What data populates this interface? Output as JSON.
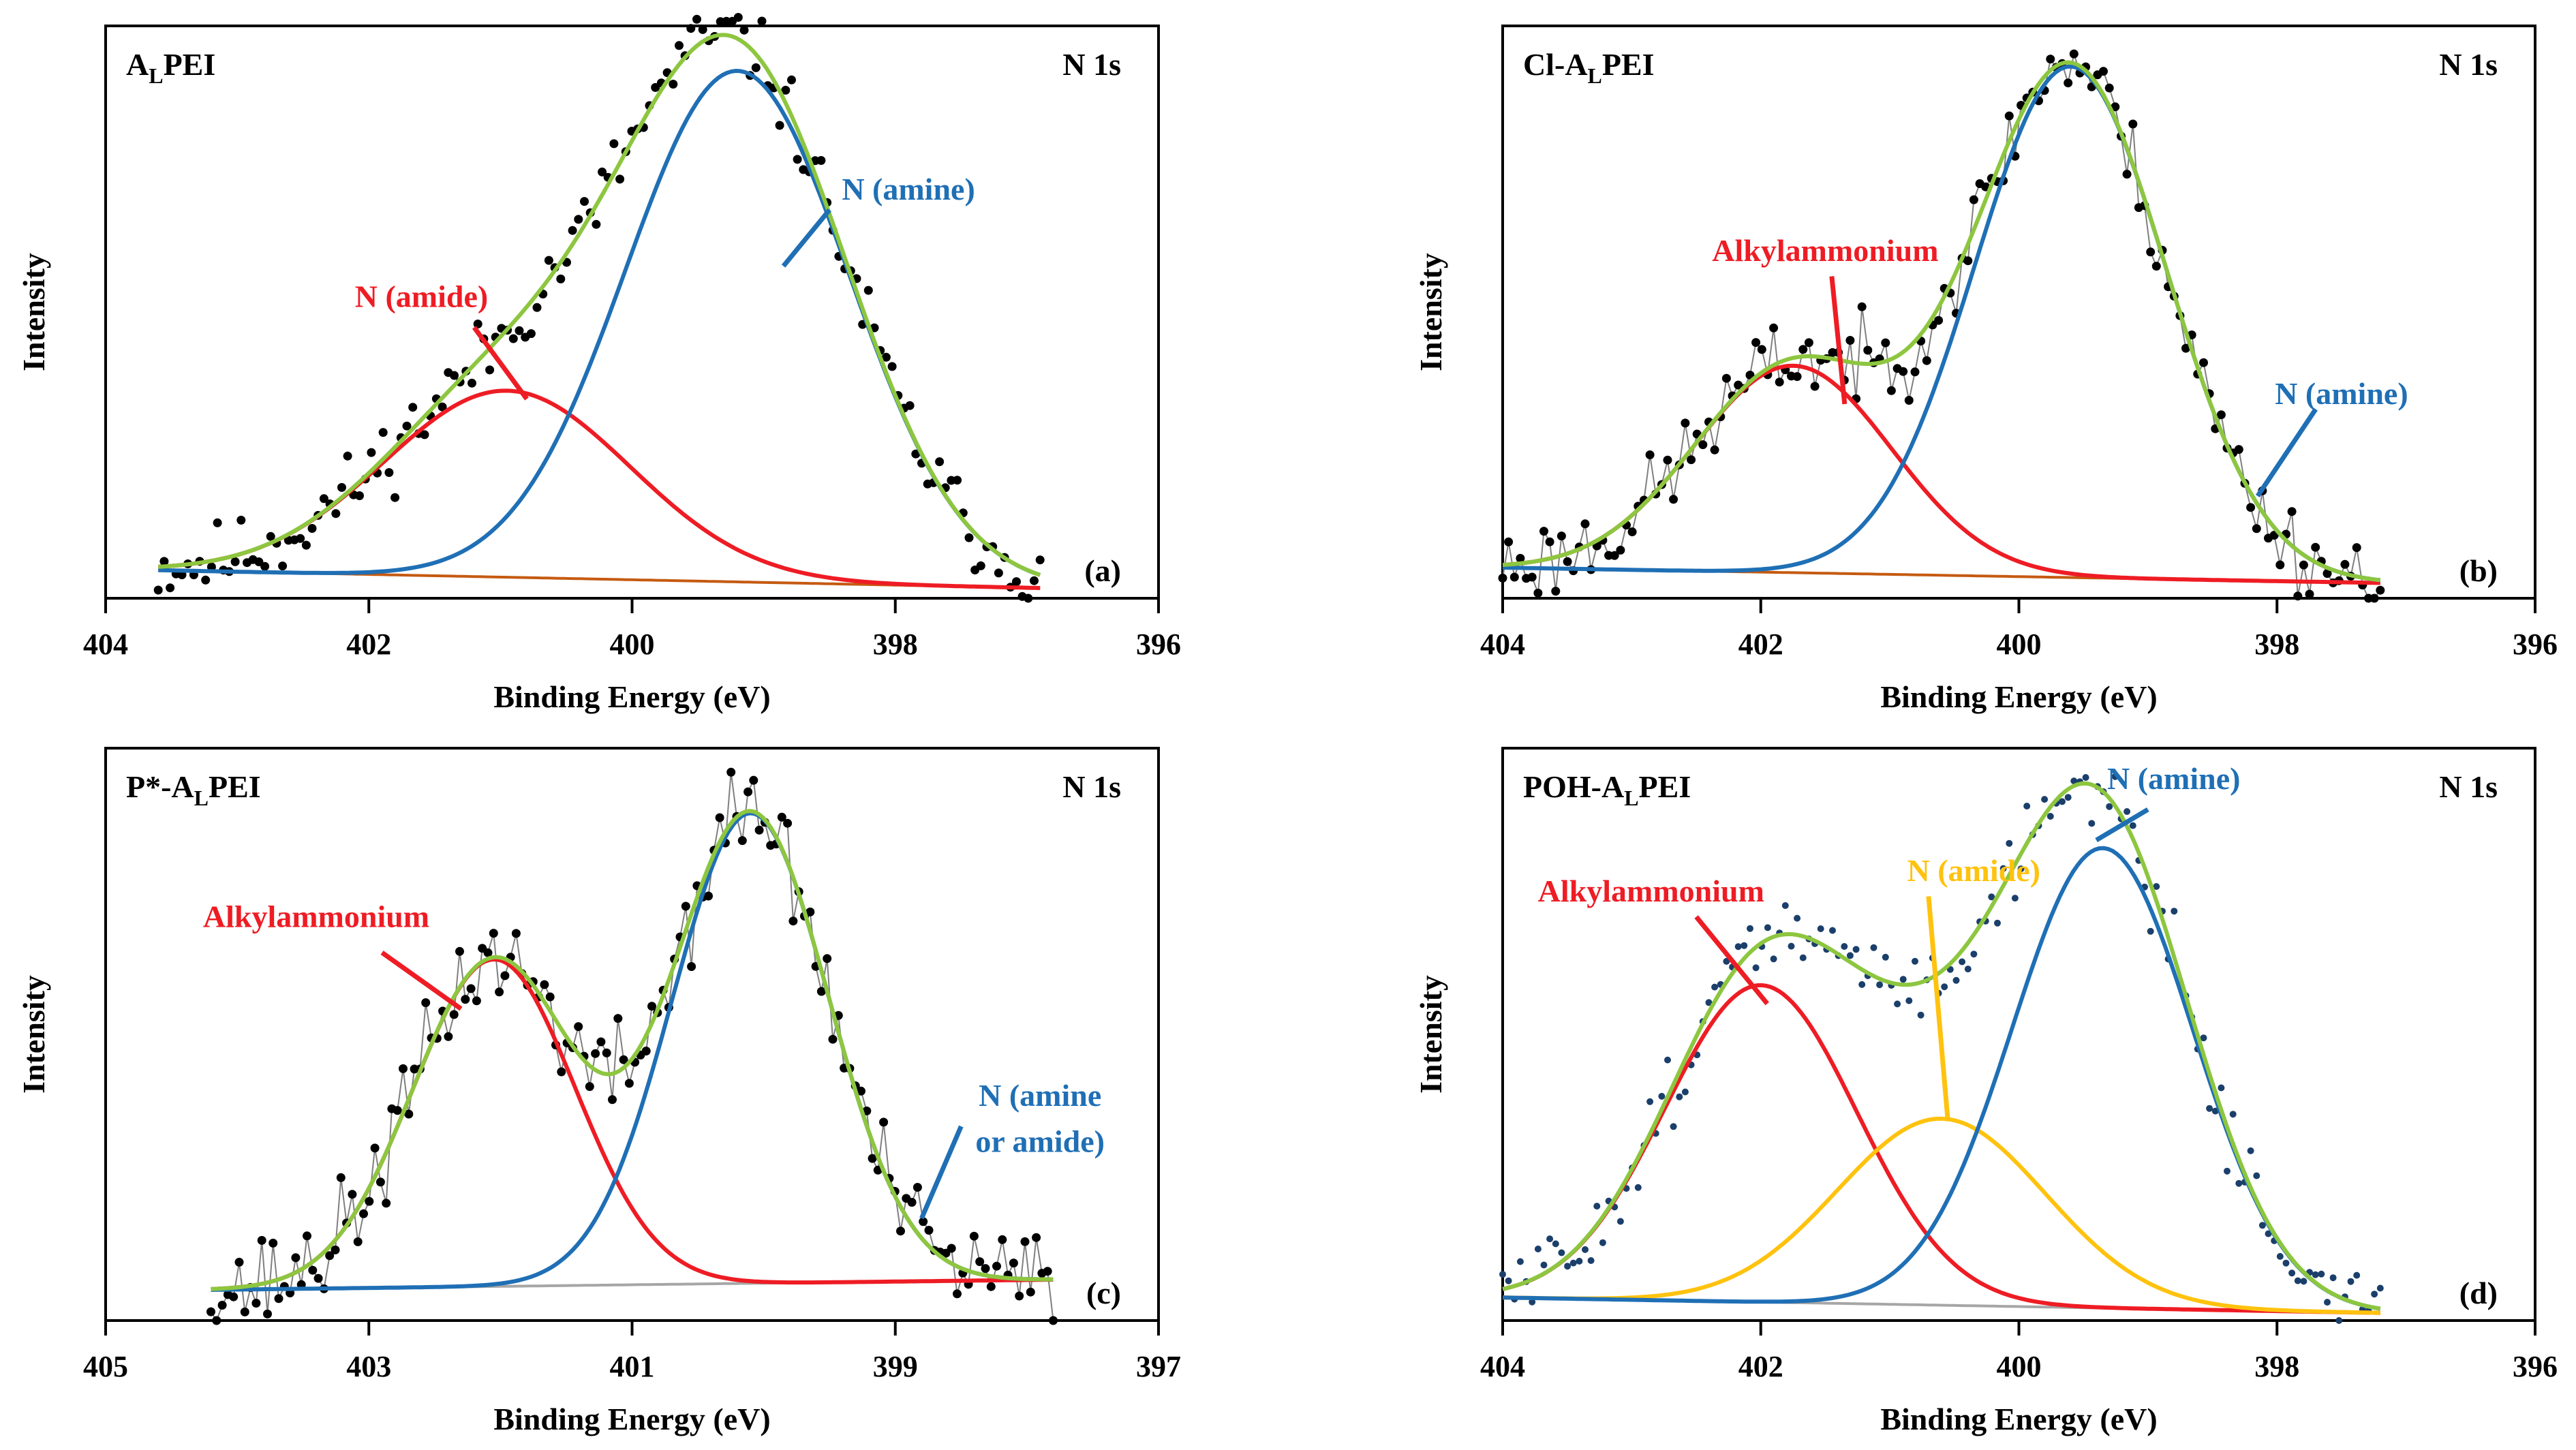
{
  "colors": {
    "fit": "#8dc63f",
    "amine": "#1f6fb5",
    "amide_red": "#ee1c24",
    "amide_yellow": "#ffc20e",
    "baseline_a": "#c55a11",
    "baseline_c": "#a6a6a6",
    "data_black": "#000000",
    "data_blue": "#1b3f6b",
    "raw_line": "#7f7f7f",
    "axis": "#000000"
  },
  "chart_data": [
    {
      "id": "a",
      "type": "scatter",
      "title_main": "A",
      "title_sub": "L",
      "title_rest": "PEI",
      "core_level": "N 1s",
      "panel_label": "(a)",
      "xlabel": "Binding Energy (eV)",
      "ylabel": "Intensity",
      "xlim": [
        404,
        396
      ],
      "xticks": [
        404,
        402,
        400,
        398,
        396
      ],
      "xtick_labels": [
        "404",
        "402",
        "400",
        "398",
        "396"
      ],
      "ylim": [
        0,
        1.12
      ],
      "data_range": [
        403.6,
        396.9
      ],
      "raw_connected": false,
      "data_style": "black-dots",
      "baseline": {
        "start": 0.055,
        "end": 0.02
      },
      "components": [
        {
          "name": "N (amide)",
          "center": 400.95,
          "fwhm": 2.2,
          "height": 0.365,
          "color": "#ee1c24"
        },
        {
          "name": "N (amine)",
          "center": 399.2,
          "fwhm": 2.0,
          "height": 1.0,
          "color": "#1f6fb5"
        }
      ],
      "noise": 0.045,
      "seed": 11,
      "annotations": [
        {
          "text": "N (amide)",
          "x": 401.6,
          "y": 0.57,
          "color": "#ee1c24",
          "lx1": 401.2,
          "ly1": 0.53,
          "lx2": 400.8,
          "ly2": 0.39
        },
        {
          "text": "N (amine)",
          "x": 397.9,
          "y": 0.78,
          "color": "#1f6fb5",
          "lx1": 398.5,
          "ly1": 0.76,
          "lx2": 398.85,
          "ly2": 0.65
        }
      ]
    },
    {
      "id": "b",
      "type": "scatter",
      "title_main": "Cl-A",
      "title_sub": "L",
      "title_rest": "PEI",
      "core_level": "N 1s",
      "panel_label": "(b)",
      "xlabel": "Binding Energy (eV)",
      "ylabel": "Intensity",
      "xlim": [
        404,
        396
      ],
      "xticks": [
        404,
        402,
        400,
        398,
        396
      ],
      "xtick_labels": [
        "404",
        "402",
        "400",
        "398",
        "396"
      ],
      "ylim": [
        0,
        1.12
      ],
      "data_range": [
        404.0,
        397.2
      ],
      "raw_connected": true,
      "data_style": "black-dots",
      "baseline": {
        "start": 0.06,
        "end": 0.03
      },
      "components": [
        {
          "name": "Alkylammonium",
          "center": 401.75,
          "fwhm": 1.8,
          "height": 0.405,
          "color": "#ee1c24"
        },
        {
          "name": "N (amine)",
          "center": 399.6,
          "fwhm": 1.75,
          "height": 1.0,
          "color": "#1f6fb5"
        }
      ],
      "noise": 0.05,
      "seed": 23,
      "annotations": [
        {
          "text": "Alkylammonium",
          "x": 401.5,
          "y": 0.66,
          "color": "#ee1c24",
          "lx1": 401.45,
          "ly1": 0.63,
          "lx2": 401.35,
          "ly2": 0.38
        },
        {
          "text": "N (amine)",
          "x": 397.5,
          "y": 0.38,
          "color": "#1f6fb5",
          "lx1": 397.7,
          "ly1": 0.37,
          "lx2": 398.15,
          "ly2": 0.2
        }
      ]
    },
    {
      "id": "c",
      "type": "scatter",
      "title_main": "P*-A",
      "title_sub": "L",
      "title_rest": "PEI",
      "core_level": "N 1s",
      "panel_label": "(c)",
      "xlabel": "Binding Energy (eV)",
      "ylabel": "Intensity",
      "xlim": [
        405,
        397
      ],
      "xticks": [
        405,
        403,
        401,
        399,
        397
      ],
      "xtick_labels": [
        "405",
        "403",
        "401",
        "399",
        "397"
      ],
      "ylim": [
        0,
        1.12
      ],
      "data_range": [
        404.2,
        397.8
      ],
      "raw_connected": true,
      "data_style": "black-dots",
      "baseline": {
        "start": 0.06,
        "end": 0.08
      },
      "components": [
        {
          "name": "Alkylammonium",
          "center": 402.05,
          "fwhm": 1.45,
          "height": 0.64,
          "color": "#ee1c24"
        },
        {
          "name": "N (amine or amide)",
          "center": 400.1,
          "fwhm": 1.4,
          "height": 0.92,
          "color": "#1f6fb5"
        }
      ],
      "noise": 0.06,
      "seed": 37,
      "annotations": [
        {
          "text": "Alkylammonium",
          "x": 403.4,
          "y": 0.77,
          "color": "#ee1c24",
          "lx1": 402.9,
          "ly1": 0.72,
          "lx2": 402.3,
          "ly2": 0.61
        },
        {
          "text": "N (amine",
          "x": 397.9,
          "y": 0.42,
          "color": "#1f6fb5",
          "lx1": 398.5,
          "ly1": 0.38,
          "lx2": 398.8,
          "ly2": 0.2
        },
        {
          "text": "or amide)",
          "x": 397.9,
          "y": 0.33,
          "color": "#1f6fb5"
        }
      ]
    },
    {
      "id": "d",
      "type": "scatter",
      "title_main": "POH-A",
      "title_sub": "L",
      "title_rest": "PEI",
      "core_level": "N 1s",
      "panel_label": "(d)",
      "xlabel": "Binding Energy (eV)",
      "ylabel": "Intensity",
      "xlim": [
        404,
        396
      ],
      "xticks": [
        404,
        402,
        400,
        398,
        396
      ],
      "xtick_labels": [
        "404",
        "402",
        "400",
        "398",
        "396"
      ],
      "ylim": [
        0,
        1.12
      ],
      "data_range": [
        404.0,
        397.2
      ],
      "raw_connected": false,
      "data_style": "blue-dots",
      "baseline": {
        "start": 0.045,
        "end": 0.015
      },
      "components": [
        {
          "name": "Alkylammonium",
          "center": 402.0,
          "fwhm": 1.75,
          "height": 0.62,
          "color": "#ee1c24"
        },
        {
          "name": "N (amide)",
          "center": 400.6,
          "fwhm": 1.9,
          "height": 0.365,
          "color": "#ffc20e"
        },
        {
          "name": "N (amine)",
          "center": 399.35,
          "fwhm": 1.65,
          "height": 0.9,
          "color": "#1f6fb5"
        }
      ],
      "noise": 0.045,
      "seed": 51,
      "annotations": [
        {
          "text": "Alkylammonium",
          "x": 402.85,
          "y": 0.82,
          "color": "#ee1c24",
          "lx1": 402.5,
          "ly1": 0.79,
          "lx2": 401.95,
          "ly2": 0.62
        },
        {
          "text": "N (amide)",
          "x": 400.35,
          "y": 0.86,
          "color": "#ffc20e",
          "lx1": 400.7,
          "ly1": 0.83,
          "lx2": 400.55,
          "ly2": 0.39
        },
        {
          "text": "N (amine)",
          "x": 398.8,
          "y": 1.04,
          "color": "#1f6fb5",
          "lx1": 399.0,
          "ly1": 1.0,
          "lx2": 399.4,
          "ly2": 0.94
        }
      ]
    }
  ]
}
